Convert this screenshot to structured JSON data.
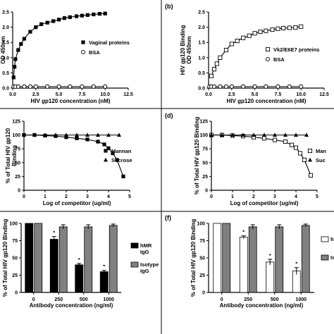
{
  "figure": {
    "background": "#ffffff",
    "ink": "#000000",
    "bar_gray": "#808080"
  },
  "chart_data": [
    {
      "panel": "a",
      "panel_label": "",
      "type": "scatter",
      "xlabel": "HIV gp120 concentration (nM)",
      "ylabel": "OD 450nm",
      "xlim": [
        0,
        12.5
      ],
      "ylim": [
        0,
        2.5
      ],
      "xticks": [
        "0.0",
        "2.5",
        "5.0",
        "7.5",
        "10.0",
        "12.5"
      ],
      "yticks": [
        "0.0",
        "0.5",
        "1.0",
        "1.5",
        "2.0",
        "2.5"
      ],
      "legend_position": "right",
      "series": [
        {
          "name": "Vaginal proteins",
          "marker": "filled-square",
          "fit_curve": true,
          "x": [
            0.1,
            0.2,
            0.3,
            0.6,
            0.9,
            1.25,
            1.9,
            2.5,
            3.1,
            3.75,
            4.4,
            5.0,
            5.6,
            6.2,
            6.9,
            7.5,
            8.1,
            8.75,
            9.4,
            10.0
          ],
          "y": [
            0.35,
            0.7,
            0.95,
            1.25,
            1.45,
            1.62,
            1.85,
            2.0,
            2.1,
            2.15,
            2.2,
            2.25,
            2.3,
            2.33,
            2.36,
            2.38,
            2.4,
            2.42,
            2.44,
            2.45
          ]
        },
        {
          "name": "BSA",
          "marker": "open-circle",
          "fit_curve": false,
          "x": [
            0.1,
            0.3,
            0.6,
            1.25,
            1.9,
            2.5,
            3.75,
            5.0,
            6.2,
            7.5,
            8.75,
            10.0
          ],
          "y": [
            0.05,
            0.05,
            0.05,
            0.05,
            0.05,
            0.05,
            0.05,
            0.05,
            0.05,
            0.05,
            0.05,
            0.05
          ]
        }
      ]
    },
    {
      "panel": "b",
      "panel_label": "(b)",
      "type": "scatter",
      "xlabel": "HIV gp120 concentration (nM)",
      "ylabel": "HIV gp120 Binding OD 450nm",
      "ylabel_lines": [
        "HIV gp120 Binding",
        "OD 450nm"
      ],
      "xlim": [
        0,
        12.5
      ],
      "ylim": [
        0,
        2.5
      ],
      "xticks": [
        "0.0",
        "2.5",
        "5.0",
        "7.5",
        "10.0",
        "12.5"
      ],
      "yticks": [
        "0.0",
        "0.5",
        "1.0",
        "1.5",
        "2.0",
        "2.5"
      ],
      "legend_position": "right",
      "series": [
        {
          "name": "Vk2/E6E7 proteins",
          "marker": "open-square",
          "fit_curve": true,
          "x": [
            0.3,
            0.6,
            0.9,
            1.25,
            1.9,
            2.5,
            3.1,
            3.75,
            4.4,
            5.0,
            5.6,
            6.2,
            6.9,
            7.5,
            8.1,
            8.75,
            9.4,
            10.0
          ],
          "y": [
            0.4,
            0.62,
            0.8,
            1.0,
            1.25,
            1.45,
            1.55,
            1.65,
            1.72,
            1.8,
            1.85,
            1.88,
            1.92,
            1.95,
            1.97,
            1.98,
            1.99,
            2.02
          ]
        },
        {
          "name": "BSA",
          "marker": "open-circle",
          "fit_curve": false,
          "x": [
            0.1,
            0.3,
            0.6,
            1.25,
            1.9,
            2.5,
            3.75,
            5.0,
            6.2,
            7.5,
            8.75,
            10.0
          ],
          "y": [
            0.05,
            0.05,
            0.05,
            0.05,
            0.05,
            0.05,
            0.05,
            0.05,
            0.05,
            0.05,
            0.05,
            0.05
          ]
        }
      ]
    },
    {
      "panel": "c",
      "panel_label": "",
      "type": "line",
      "xlabel": "Log of competitor (ug/ml)",
      "ylabel": "% of Total HIV gp120 Binding",
      "ylabel_lines": [
        "% of Total HIV gp120",
        "Binding"
      ],
      "xlim": [
        0,
        5
      ],
      "ylim": [
        0,
        125
      ],
      "xticks": [
        "0",
        "1",
        "2",
        "3",
        "4",
        "5"
      ],
      "yticks": [
        "0",
        "25",
        "50",
        "75",
        "100",
        "125"
      ],
      "legend_position": "right",
      "series": [
        {
          "name": "Mannan",
          "marker": "filled-square",
          "fit_curve": true,
          "x": [
            0.0,
            0.5,
            1.0,
            1.5,
            2.0,
            2.5,
            3.0,
            3.5,
            3.8,
            4.0,
            4.2,
            4.4,
            4.7
          ],
          "y": [
            100,
            100,
            99,
            98,
            96,
            94,
            92,
            88,
            83,
            76,
            67,
            55,
            25
          ]
        },
        {
          "name": "Sucrose",
          "marker": "filled-triangle",
          "fit_curve": false,
          "x": [
            0.0,
            0.5,
            1.0,
            1.5,
            2.0,
            2.5,
            3.0,
            3.5,
            4.0,
            4.5
          ],
          "y": [
            100,
            100,
            100,
            100,
            100,
            100,
            100,
            100,
            100,
            100
          ]
        }
      ]
    },
    {
      "panel": "d",
      "panel_label": "(d)",
      "type": "line",
      "xlabel": "Log of competitor (ug/ml)",
      "ylabel": "% of Total HIV gp120 Binding",
      "xlim": [
        0,
        5
      ],
      "ylim": [
        0,
        125
      ],
      "xticks": [
        "0",
        "1",
        "2",
        "3",
        "4",
        "5"
      ],
      "yticks": [
        "0",
        "25",
        "50",
        "75",
        "100",
        "125"
      ],
      "legend_position": "right",
      "series": [
        {
          "name": "Mannan",
          "legend_text": "Man",
          "marker": "open-square",
          "fit_curve": true,
          "x": [
            0.0,
            0.5,
            1.0,
            1.5,
            2.0,
            2.5,
            3.0,
            3.5,
            3.8,
            4.0,
            4.2,
            4.4,
            4.7
          ],
          "y": [
            100,
            100,
            99,
            98,
            96,
            94,
            91,
            88,
            82,
            77,
            67,
            55,
            27
          ]
        },
        {
          "name": "Sucrose",
          "legend_text": "Suc",
          "marker": "filled-triangle",
          "fit_curve": false,
          "x": [
            0.0,
            0.5,
            1.0,
            1.5,
            2.0,
            2.5,
            3.0,
            3.5,
            4.0,
            4.5
          ],
          "y": [
            100,
            100,
            100,
            100,
            100,
            100,
            100,
            100,
            100,
            100
          ]
        }
      ]
    },
    {
      "panel": "e",
      "panel_label": "",
      "type": "bar",
      "xlabel": "Antibody concentration (ng/ml)",
      "ylabel": "% of Total HIV gp120 Binding",
      "categories": [
        "0",
        "250",
        "500",
        "1000"
      ],
      "ylim": [
        0,
        100
      ],
      "yticks": [
        "0",
        "25",
        "50",
        "75",
        "100"
      ],
      "legend_position": "right",
      "series": [
        {
          "name": "hMR IgG",
          "name_lines": [
            "hMR",
            "IgG"
          ],
          "fill": "black",
          "values": [
            100,
            77,
            40,
            30
          ],
          "errors": [
            0,
            4,
            2,
            2
          ],
          "significant": [
            false,
            true,
            true,
            true
          ]
        },
        {
          "name": "Isotype IgG",
          "name_lines": [
            "Isotype",
            "IgG"
          ],
          "fill": "gray",
          "values": [
            100,
            95,
            95,
            97
          ],
          "errors": [
            0,
            3,
            3,
            2
          ],
          "significant": [
            false,
            false,
            false,
            false
          ]
        }
      ]
    },
    {
      "panel": "f",
      "panel_label": "(f)",
      "type": "bar",
      "xlabel": "Antibody concentration (ng/ml)",
      "ylabel": "% of Total HIV gp120 Binding",
      "categories": [
        "0",
        "250",
        "500",
        "1000"
      ],
      "ylim": [
        0,
        100
      ],
      "yticks": [
        "0",
        "25",
        "50",
        "75",
        "100"
      ],
      "legend_position": "right",
      "series": [
        {
          "name": "hMR IgG",
          "legend_text": "h",
          "fill": "white",
          "values": [
            100,
            80,
            44,
            31
          ],
          "errors": [
            0,
            2,
            4,
            5
          ],
          "significant": [
            false,
            true,
            true,
            true
          ]
        },
        {
          "name": "Isotype IgG",
          "legend_text": "Is",
          "fill": "gray",
          "values": [
            100,
            95,
            95,
            97
          ],
          "errors": [
            0,
            3,
            3,
            2
          ],
          "significant": [
            false,
            false,
            false,
            false
          ]
        }
      ]
    }
  ]
}
